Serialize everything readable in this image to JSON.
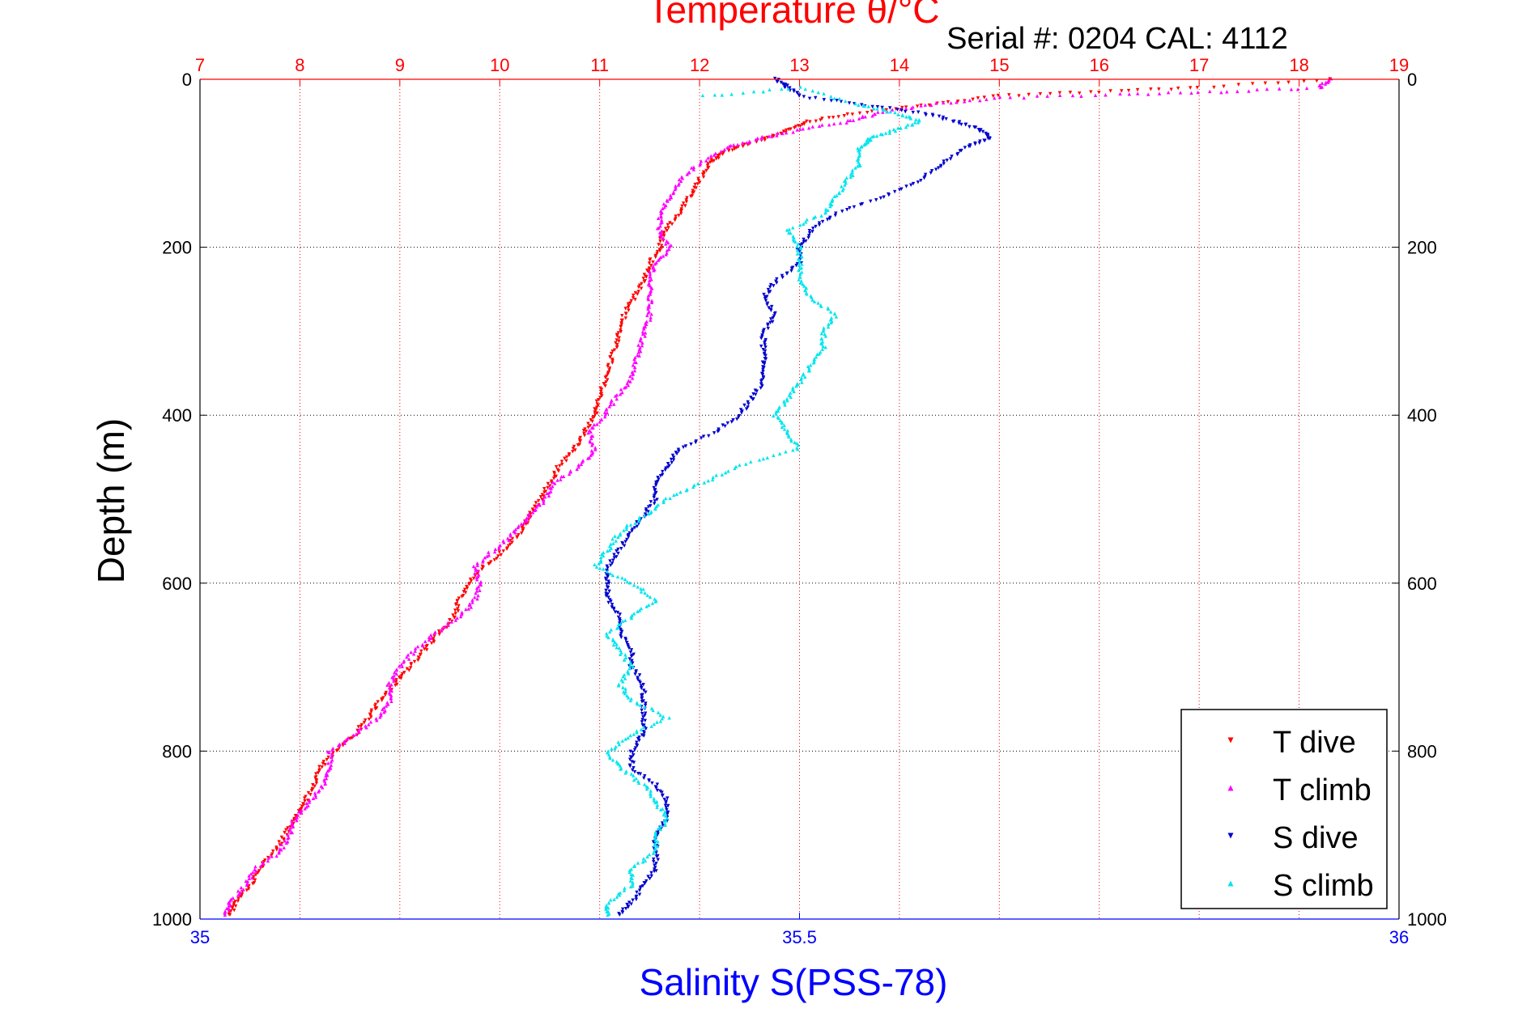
{
  "header": {
    "title": "Temperature θ/°C",
    "serial_text": "Serial #: 0204  CAL: 4112"
  },
  "colors": {
    "temperature_axis": "#ff0000",
    "salinity_axis": "#0000ff",
    "grid_temperature": "#ff0000",
    "grid_depth": "#000000",
    "t_dive": "#ff0000",
    "t_climb": "#ff00ff",
    "s_dive": "#0000cc",
    "s_climb": "#00e5ee"
  },
  "chart_data": {
    "type": "scatter",
    "title": "Temperature θ/°C",
    "ylabel": "Depth (m)",
    "xlabel": "Salinity S(PSS-78)",
    "ylim": [
      0,
      1000
    ],
    "y_reversed": true,
    "x_temperature_lim": [
      7,
      19
    ],
    "x_salinity_lim": [
      35,
      36
    ],
    "temperature_ticks": [
      "7",
      "8",
      "9",
      "10",
      "11",
      "12",
      "13",
      "14",
      "15",
      "16",
      "17",
      "18",
      "19"
    ],
    "salinity_ticks": [
      "35",
      "35.5",
      "36"
    ],
    "depth_ticks": [
      "0",
      "200",
      "400",
      "600",
      "800",
      "1000"
    ],
    "grid": true,
    "legend_position": "bottom-right",
    "legend": [
      "T dive",
      "T climb",
      "S dive",
      "S climb"
    ],
    "series": [
      {
        "name": "T dive",
        "axis": "temperature",
        "marker": "down-triangle",
        "points": [
          [
            18.3,
            0
          ],
          [
            17.0,
            10
          ],
          [
            16.0,
            15
          ],
          [
            15.0,
            20
          ],
          [
            14.3,
            30
          ],
          [
            13.6,
            40
          ],
          [
            13.1,
            50
          ],
          [
            12.9,
            60
          ],
          [
            12.7,
            70
          ],
          [
            12.4,
            80
          ],
          [
            12.2,
            90
          ],
          [
            12.1,
            100
          ],
          [
            12.0,
            120
          ],
          [
            11.9,
            140
          ],
          [
            11.8,
            160
          ],
          [
            11.65,
            180
          ],
          [
            11.6,
            200
          ],
          [
            11.5,
            220
          ],
          [
            11.45,
            240
          ],
          [
            11.35,
            260
          ],
          [
            11.25,
            280
          ],
          [
            11.2,
            300
          ],
          [
            11.15,
            320
          ],
          [
            11.1,
            340
          ],
          [
            11.05,
            360
          ],
          [
            11.0,
            380
          ],
          [
            10.95,
            400
          ],
          [
            10.85,
            420
          ],
          [
            10.75,
            440
          ],
          [
            10.6,
            460
          ],
          [
            10.5,
            480
          ],
          [
            10.4,
            500
          ],
          [
            10.3,
            520
          ],
          [
            10.2,
            540
          ],
          [
            10.05,
            560
          ],
          [
            9.85,
            580
          ],
          [
            9.7,
            600
          ],
          [
            9.6,
            620
          ],
          [
            9.55,
            640
          ],
          [
            9.4,
            660
          ],
          [
            9.25,
            680
          ],
          [
            9.1,
            700
          ],
          [
            8.95,
            720
          ],
          [
            8.8,
            740
          ],
          [
            8.7,
            760
          ],
          [
            8.55,
            780
          ],
          [
            8.35,
            800
          ],
          [
            8.2,
            820
          ],
          [
            8.15,
            840
          ],
          [
            8.05,
            860
          ],
          [
            7.95,
            880
          ],
          [
            7.85,
            900
          ],
          [
            7.75,
            920
          ],
          [
            7.6,
            940
          ],
          [
            7.5,
            960
          ],
          [
            7.35,
            980
          ],
          [
            7.3,
            995
          ]
        ]
      },
      {
        "name": "T climb",
        "axis": "temperature",
        "marker": "up-triangle",
        "points": [
          [
            18.3,
            0
          ],
          [
            18.2,
            10
          ],
          [
            17.2,
            15
          ],
          [
            16.2,
            18
          ],
          [
            15.0,
            22
          ],
          [
            14.3,
            30
          ],
          [
            13.8,
            40
          ],
          [
            13.5,
            50
          ],
          [
            13.0,
            60
          ],
          [
            12.6,
            70
          ],
          [
            12.3,
            80
          ],
          [
            12.0,
            100
          ],
          [
            11.8,
            120
          ],
          [
            11.7,
            140
          ],
          [
            11.6,
            160
          ],
          [
            11.6,
            180
          ],
          [
            11.7,
            200
          ],
          [
            11.55,
            220
          ],
          [
            11.5,
            240
          ],
          [
            11.5,
            260
          ],
          [
            11.5,
            280
          ],
          [
            11.45,
            300
          ],
          [
            11.4,
            320
          ],
          [
            11.35,
            340
          ],
          [
            11.3,
            360
          ],
          [
            11.15,
            380
          ],
          [
            11.05,
            400
          ],
          [
            10.9,
            420
          ],
          [
            10.95,
            440
          ],
          [
            10.8,
            460
          ],
          [
            10.55,
            480
          ],
          [
            10.45,
            500
          ],
          [
            10.3,
            520
          ],
          [
            10.15,
            540
          ],
          [
            9.95,
            560
          ],
          [
            9.75,
            580
          ],
          [
            9.8,
            600
          ],
          [
            9.75,
            620
          ],
          [
            9.6,
            640
          ],
          [
            9.35,
            660
          ],
          [
            9.15,
            680
          ],
          [
            9.0,
            700
          ],
          [
            8.9,
            720
          ],
          [
            8.9,
            740
          ],
          [
            8.8,
            760
          ],
          [
            8.55,
            780
          ],
          [
            8.3,
            800
          ],
          [
            8.3,
            820
          ],
          [
            8.25,
            840
          ],
          [
            8.1,
            860
          ],
          [
            7.95,
            880
          ],
          [
            7.9,
            900
          ],
          [
            7.8,
            920
          ],
          [
            7.55,
            940
          ],
          [
            7.45,
            960
          ],
          [
            7.3,
            980
          ],
          [
            7.25,
            995
          ]
        ]
      },
      {
        "name": "S dive",
        "axis": "salinity",
        "marker": "down-triangle",
        "points": [
          [
            35.48,
            0
          ],
          [
            35.49,
            10
          ],
          [
            35.5,
            20
          ],
          [
            35.55,
            30
          ],
          [
            35.6,
            40
          ],
          [
            35.63,
            50
          ],
          [
            35.65,
            60
          ],
          [
            35.66,
            70
          ],
          [
            35.64,
            80
          ],
          [
            35.62,
            100
          ],
          [
            35.6,
            120
          ],
          [
            35.57,
            140
          ],
          [
            35.53,
            160
          ],
          [
            35.51,
            180
          ],
          [
            35.5,
            200
          ],
          [
            35.5,
            220
          ],
          [
            35.48,
            240
          ],
          [
            35.47,
            260
          ],
          [
            35.48,
            280
          ],
          [
            35.47,
            300
          ],
          [
            35.47,
            320
          ],
          [
            35.47,
            340
          ],
          [
            35.47,
            360
          ],
          [
            35.46,
            380
          ],
          [
            35.45,
            400
          ],
          [
            35.43,
            420
          ],
          [
            35.4,
            440
          ],
          [
            35.39,
            460
          ],
          [
            35.38,
            480
          ],
          [
            35.38,
            500
          ],
          [
            35.37,
            520
          ],
          [
            35.36,
            540
          ],
          [
            35.35,
            560
          ],
          [
            35.34,
            580
          ],
          [
            35.34,
            600
          ],
          [
            35.34,
            620
          ],
          [
            35.35,
            640
          ],
          [
            35.35,
            660
          ],
          [
            35.36,
            680
          ],
          [
            35.36,
            700
          ],
          [
            35.37,
            720
          ],
          [
            35.37,
            740
          ],
          [
            35.37,
            760
          ],
          [
            35.37,
            780
          ],
          [
            35.36,
            800
          ],
          [
            35.36,
            820
          ],
          [
            35.38,
            840
          ],
          [
            35.39,
            860
          ],
          [
            35.39,
            880
          ],
          [
            35.38,
            900
          ],
          [
            35.38,
            920
          ],
          [
            35.38,
            940
          ],
          [
            35.37,
            960
          ],
          [
            35.36,
            980
          ],
          [
            35.35,
            995
          ]
        ]
      },
      {
        "name": "S climb",
        "axis": "salinity",
        "marker": "up-triangle",
        "points": [
          [
            35.42,
            20
          ],
          [
            35.5,
            10
          ],
          [
            35.55,
            30
          ],
          [
            35.58,
            40
          ],
          [
            35.6,
            50
          ],
          [
            35.58,
            60
          ],
          [
            35.56,
            70
          ],
          [
            35.55,
            80
          ],
          [
            35.55,
            100
          ],
          [
            35.54,
            120
          ],
          [
            35.53,
            140
          ],
          [
            35.52,
            160
          ],
          [
            35.49,
            180
          ],
          [
            35.5,
            200
          ],
          [
            35.5,
            220
          ],
          [
            35.5,
            240
          ],
          [
            35.51,
            260
          ],
          [
            35.53,
            280
          ],
          [
            35.52,
            300
          ],
          [
            35.52,
            320
          ],
          [
            35.51,
            340
          ],
          [
            35.5,
            360
          ],
          [
            35.49,
            380
          ],
          [
            35.48,
            400
          ],
          [
            35.49,
            420
          ],
          [
            35.5,
            440
          ],
          [
            35.45,
            460
          ],
          [
            35.42,
            480
          ],
          [
            35.39,
            500
          ],
          [
            35.37,
            520
          ],
          [
            35.35,
            540
          ],
          [
            35.34,
            560
          ],
          [
            35.33,
            580
          ],
          [
            35.36,
            600
          ],
          [
            35.38,
            620
          ],
          [
            35.36,
            640
          ],
          [
            35.34,
            660
          ],
          [
            35.35,
            680
          ],
          [
            35.36,
            700
          ],
          [
            35.35,
            720
          ],
          [
            35.36,
            740
          ],
          [
            35.39,
            760
          ],
          [
            35.36,
            780
          ],
          [
            35.34,
            800
          ],
          [
            35.35,
            820
          ],
          [
            35.37,
            840
          ],
          [
            35.38,
            860
          ],
          [
            35.39,
            880
          ],
          [
            35.38,
            900
          ],
          [
            35.38,
            920
          ],
          [
            35.36,
            940
          ],
          [
            35.36,
            960
          ],
          [
            35.34,
            980
          ],
          [
            35.34,
            995
          ]
        ]
      }
    ]
  }
}
